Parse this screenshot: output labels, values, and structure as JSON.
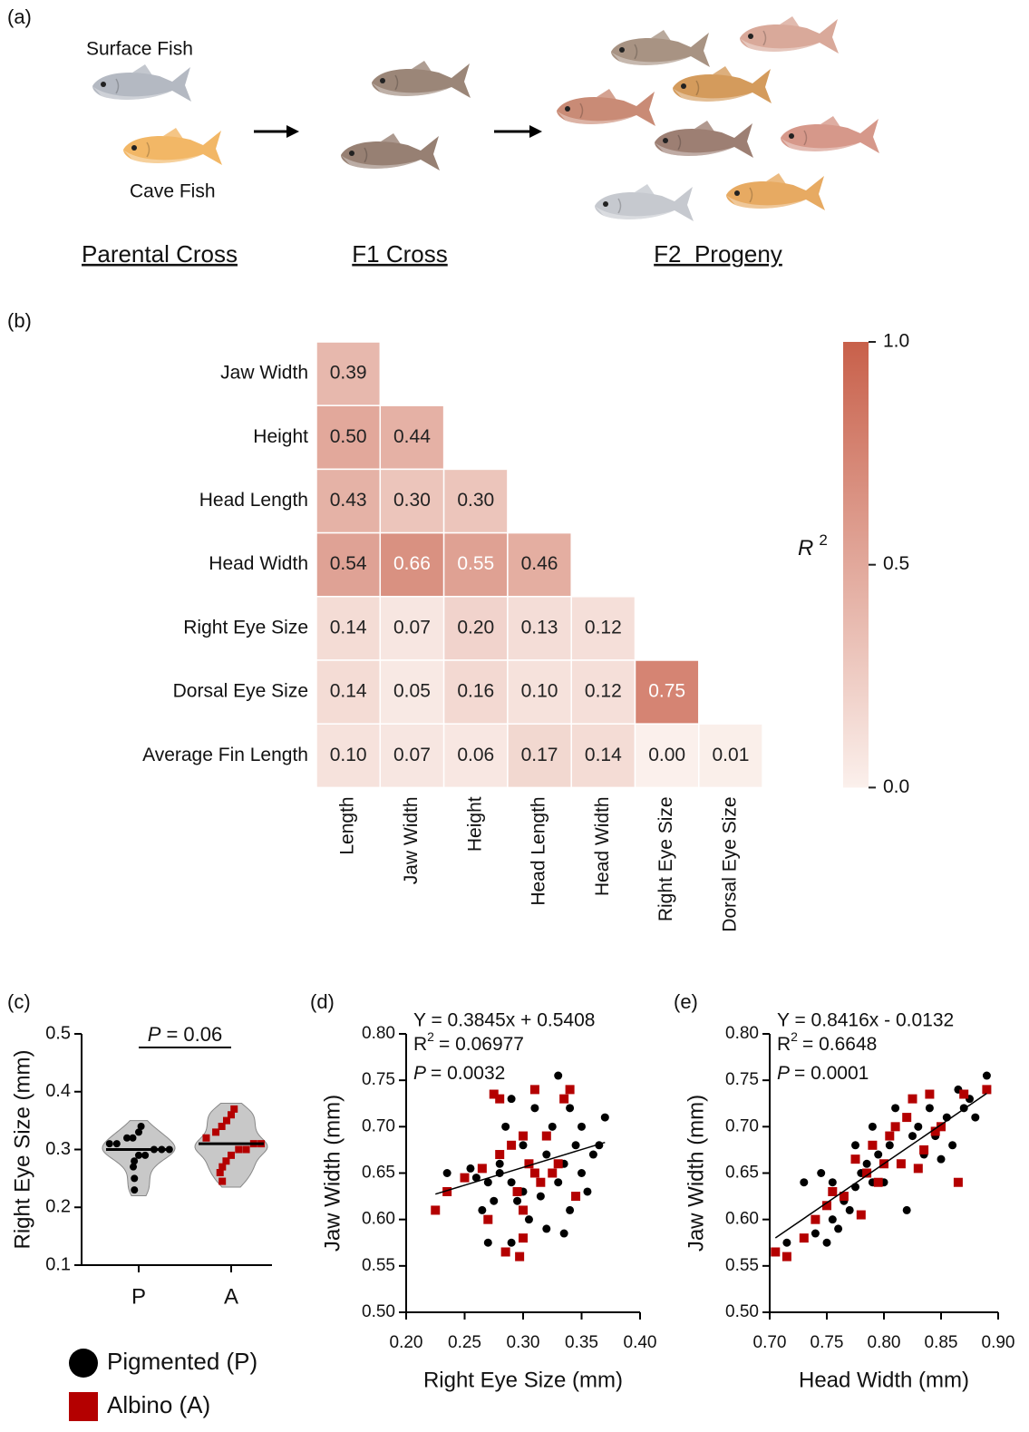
{
  "panel_a": {
    "panel_label": "(a)",
    "surface_fish": "Surface Fish",
    "cave_fish": "Cave Fish",
    "parental_cross": "Parental Cross",
    "f1_cross": "F1 Cross",
    "f2_progeny": "F2  Progeny"
  },
  "chart_data": [
    {
      "type": "heatmap",
      "panel_label": "(b)",
      "rows": [
        "Jaw Width",
        "Height",
        "Head Length",
        "Head Width",
        "Right Eye Size",
        "Dorsal Eye Size",
        "Average Fin Length"
      ],
      "columns": [
        "Length",
        "Jaw Width",
        "Height",
        "Head Length",
        "Head Width",
        "Right Eye Size",
        "Dorsal Eye Size"
      ],
      "values": [
        [
          0.39
        ],
        [
          0.5,
          0.44
        ],
        [
          0.43,
          0.3,
          0.3
        ],
        [
          0.54,
          0.66,
          0.55,
          0.46
        ],
        [
          0.14,
          0.07,
          0.2,
          0.13,
          0.12
        ],
        [
          0.14,
          0.05,
          0.16,
          0.1,
          0.12,
          0.75
        ],
        [
          0.1,
          0.07,
          0.06,
          0.17,
          0.14,
          0,
          0.01
        ]
      ],
      "value_labels": [
        [
          "0.39"
        ],
        [
          "0.50",
          "0.44"
        ],
        [
          "0.43",
          "0.30",
          "0.30"
        ],
        [
          "0.54",
          "0.66",
          "0.55",
          "0.46"
        ],
        [
          "0.14",
          "0.07",
          "0.20",
          "0.13",
          "0.12"
        ],
        [
          "0.14",
          "0.05",
          "0.16",
          "0.10",
          "0.12",
          "0.75"
        ],
        [
          "0.10",
          "0.07",
          "0.06",
          "0.17",
          "0.14",
          "0.00",
          "0.01"
        ]
      ],
      "colormap": [
        "#fbf0ec",
        "#c8604a"
      ],
      "zlim": [
        0,
        1
      ],
      "colorbar_ticks": [
        {
          "value": 0,
          "label": "0.0"
        },
        0.5,
        {
          "value": 1,
          "label": "1.0"
        }
      ],
      "colorbar_label": "R",
      "colorbar_label_sup": "2"
    },
    {
      "type": "violin",
      "panel_label": "(c)",
      "ylabel": "Right Eye Size (mm)",
      "categories": [
        "P",
        "A"
      ],
      "ylim": [
        0.1,
        0.5
      ],
      "yticks": [
        0.1,
        0.2,
        0.3,
        0.4,
        0.5
      ],
      "annotation_symbol": "P",
      "annotation_text": "= 0.06",
      "violin_color": "#c8c8c8",
      "series": [
        {
          "name": "Pigmented (P)",
          "color": "#000000",
          "marker": "circle",
          "values": [
            0.23,
            0.25,
            0.27,
            0.28,
            0.29,
            0.29,
            0.3,
            0.3,
            0.3,
            0.31,
            0.31,
            0.32,
            0.32,
            0.33,
            0.34
          ]
        },
        {
          "name": "Albino (A)",
          "color": "#b40000",
          "marker": "square",
          "values": [
            0.245,
            0.26,
            0.27,
            0.28,
            0.29,
            0.3,
            0.3,
            0.31,
            0.31,
            0.32,
            0.33,
            0.34,
            0.35,
            0.36,
            0.37
          ]
        }
      ],
      "medians": [
        0.3,
        0.31
      ]
    },
    {
      "type": "scatter",
      "panel_label": "(d)",
      "xlabel": "Right Eye Size (mm)",
      "ylabel": "Jaw Width (mm)",
      "xlim": [
        0.2,
        0.4
      ],
      "ylim": [
        0.5,
        0.8
      ],
      "xticks": [
        {
          "value": 0.2,
          "label": "0.20"
        },
        0.25,
        {
          "value": 0.3,
          "label": "0.30"
        },
        0.35,
        {
          "value": 0.4,
          "label": "0.40"
        }
      ],
      "yticks": [
        {
          "value": 0.5,
          "label": "0.50"
        },
        0.55,
        {
          "value": 0.6,
          "label": "0.60"
        },
        0.65,
        {
          "value": 0.7,
          "label": "0.70"
        },
        0.75,
        {
          "value": 0.8,
          "label": "0.80"
        }
      ],
      "equation": "Y = 0.3845x + 0.5408",
      "r2_symbol": "R",
      "r2_sup": "2",
      "r2_text": "= 0.06977",
      "p_symbol": "P",
      "p_text": "= 0.0032",
      "regression": {
        "slope": 0.3845,
        "intercept": 0.5408
      },
      "series": [
        {
          "color": "#000000",
          "marker": "circle",
          "x": [
            0.235,
            0.255,
            0.26,
            0.265,
            0.27,
            0.27,
            0.275,
            0.28,
            0.285,
            0.29,
            0.29,
            0.295,
            0.3,
            0.3,
            0.305,
            0.31,
            0.31,
            0.315,
            0.32,
            0.32,
            0.325,
            0.33,
            0.33,
            0.335,
            0.335,
            0.34,
            0.345,
            0.35,
            0.35,
            0.355,
            0.36,
            0.365,
            0.37,
            0.31,
            0.29,
            0.32,
            0.28,
            0.34
          ],
          "values": [
            0.65,
            0.655,
            0.645,
            0.61,
            0.575,
            0.64,
            0.62,
            0.66,
            0.7,
            0.575,
            0.64,
            0.62,
            0.63,
            0.68,
            0.6,
            0.65,
            0.72,
            0.625,
            0.67,
            0.59,
            0.7,
            0.755,
            0.64,
            0.66,
            0.585,
            0.72,
            0.68,
            0.7,
            0.65,
            0.63,
            0.67,
            0.68,
            0.71,
            0.74,
            0.73,
            0.69,
            0.65,
            0.61
          ]
        },
        {
          "color": "#b40000",
          "marker": "square",
          "x": [
            0.225,
            0.235,
            0.25,
            0.265,
            0.27,
            0.275,
            0.28,
            0.28,
            0.285,
            0.29,
            0.295,
            0.297,
            0.3,
            0.3,
            0.305,
            0.31,
            0.31,
            0.315,
            0.32,
            0.325,
            0.33,
            0.335,
            0.34,
            0.345,
            0.3
          ],
          "values": [
            0.61,
            0.63,
            0.645,
            0.655,
            0.6,
            0.735,
            0.73,
            0.67,
            0.565,
            0.68,
            0.63,
            0.56,
            0.58,
            0.69,
            0.66,
            0.74,
            0.65,
            0.64,
            0.69,
            0.65,
            0.66,
            0.73,
            0.74,
            0.625,
            0.61
          ]
        }
      ]
    },
    {
      "type": "scatter",
      "panel_label": "(e)",
      "xlabel": "Head Width (mm)",
      "ylabel": "Jaw Width (mm)",
      "xlim": [
        0.7,
        0.9
      ],
      "ylim": [
        0.5,
        0.8
      ],
      "xticks": [
        {
          "value": 0.7,
          "label": "0.70"
        },
        0.75,
        {
          "value": 0.8,
          "label": "0.80"
        },
        0.85,
        {
          "value": 0.9,
          "label": "0.90"
        }
      ],
      "yticks": [
        {
          "value": 0.5,
          "label": "0.50"
        },
        0.55,
        {
          "value": 0.6,
          "label": "0.60"
        },
        0.65,
        {
          "value": 0.7,
          "label": "0.70"
        },
        0.75,
        {
          "value": 0.8,
          "label": "0.80"
        }
      ],
      "equation": "Y = 0.8416x - 0.0132",
      "r2_symbol": "R",
      "r2_sup": "2",
      "r2_text": "= 0.6648",
      "p_symbol": "P",
      "p_text": "= 0.0001",
      "regression": {
        "slope": 0.8416,
        "intercept": -0.0132
      },
      "series": [
        {
          "color": "#000000",
          "marker": "circle",
          "x": [
            0.715,
            0.73,
            0.74,
            0.745,
            0.75,
            0.755,
            0.76,
            0.765,
            0.77,
            0.775,
            0.78,
            0.785,
            0.79,
            0.795,
            0.8,
            0.805,
            0.81,
            0.815,
            0.82,
            0.825,
            0.83,
            0.835,
            0.84,
            0.845,
            0.85,
            0.855,
            0.865,
            0.87,
            0.875,
            0.89,
            0.88,
            0.86,
            0.79,
            0.775,
            0.755
          ],
          "values": [
            0.575,
            0.64,
            0.585,
            0.65,
            0.575,
            0.64,
            0.59,
            0.62,
            0.61,
            0.68,
            0.65,
            0.66,
            0.7,
            0.67,
            0.64,
            0.68,
            0.72,
            0.66,
            0.61,
            0.69,
            0.7,
            0.67,
            0.72,
            0.69,
            0.665,
            0.71,
            0.74,
            0.72,
            0.73,
            0.755,
            0.71,
            0.68,
            0.64,
            0.635,
            0.6
          ]
        },
        {
          "color": "#b40000",
          "marker": "square",
          "x": [
            0.705,
            0.715,
            0.73,
            0.74,
            0.75,
            0.755,
            0.765,
            0.775,
            0.78,
            0.785,
            0.79,
            0.795,
            0.8,
            0.805,
            0.81,
            0.815,
            0.82,
            0.83,
            0.835,
            0.84,
            0.845,
            0.85,
            0.865,
            0.87,
            0.89,
            0.825
          ],
          "values": [
            0.565,
            0.56,
            0.58,
            0.6,
            0.615,
            0.63,
            0.625,
            0.665,
            0.605,
            0.65,
            0.68,
            0.64,
            0.66,
            0.69,
            0.7,
            0.66,
            0.71,
            0.655,
            0.675,
            0.735,
            0.695,
            0.7,
            0.64,
            0.735,
            0.74,
            0.73
          ]
        }
      ]
    }
  ]
}
